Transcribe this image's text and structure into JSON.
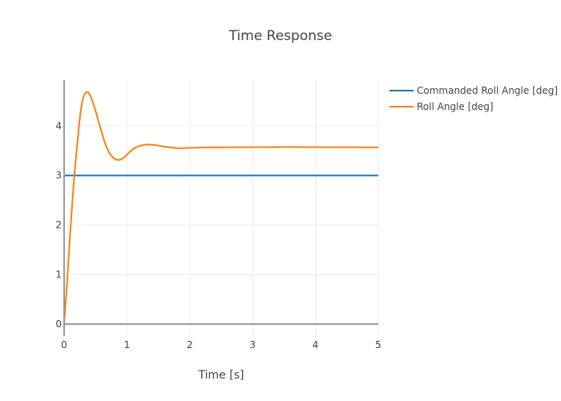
{
  "chart_data": {
    "type": "line",
    "title": "Time Response",
    "xlabel": "Time [s]",
    "ylabel": "",
    "xlim": [
      0,
      5
    ],
    "ylim": [
      -0.24,
      4.92
    ],
    "xticks": [
      "0",
      "1",
      "2",
      "3",
      "4",
      "5"
    ],
    "yticks": [
      "0",
      "1",
      "2",
      "3",
      "4"
    ],
    "grid": true,
    "legend_position": "top-right",
    "series": [
      {
        "name": "Commanded Roll Angle [deg]",
        "color": "#1f77b4",
        "x": [
          0,
          5
        ],
        "y": [
          3,
          3
        ]
      },
      {
        "name": "Roll Angle [deg]",
        "color": "#ff7f0e",
        "x": [
          0,
          0.05,
          0.1,
          0.15,
          0.2,
          0.25,
          0.3,
          0.36,
          0.42,
          0.5,
          0.58,
          0.66,
          0.75,
          0.85,
          0.95,
          1.05,
          1.15,
          1.3,
          1.45,
          1.6,
          1.8,
          2.0,
          2.3,
          3.0,
          4.0,
          5.0
        ],
        "y": [
          0,
          0.9,
          1.9,
          2.8,
          3.5,
          4.15,
          4.55,
          4.68,
          4.6,
          4.3,
          3.95,
          3.62,
          3.4,
          3.31,
          3.36,
          3.48,
          3.57,
          3.62,
          3.61,
          3.58,
          3.55,
          3.555,
          3.565,
          3.57,
          3.57,
          3.565
        ]
      }
    ]
  }
}
